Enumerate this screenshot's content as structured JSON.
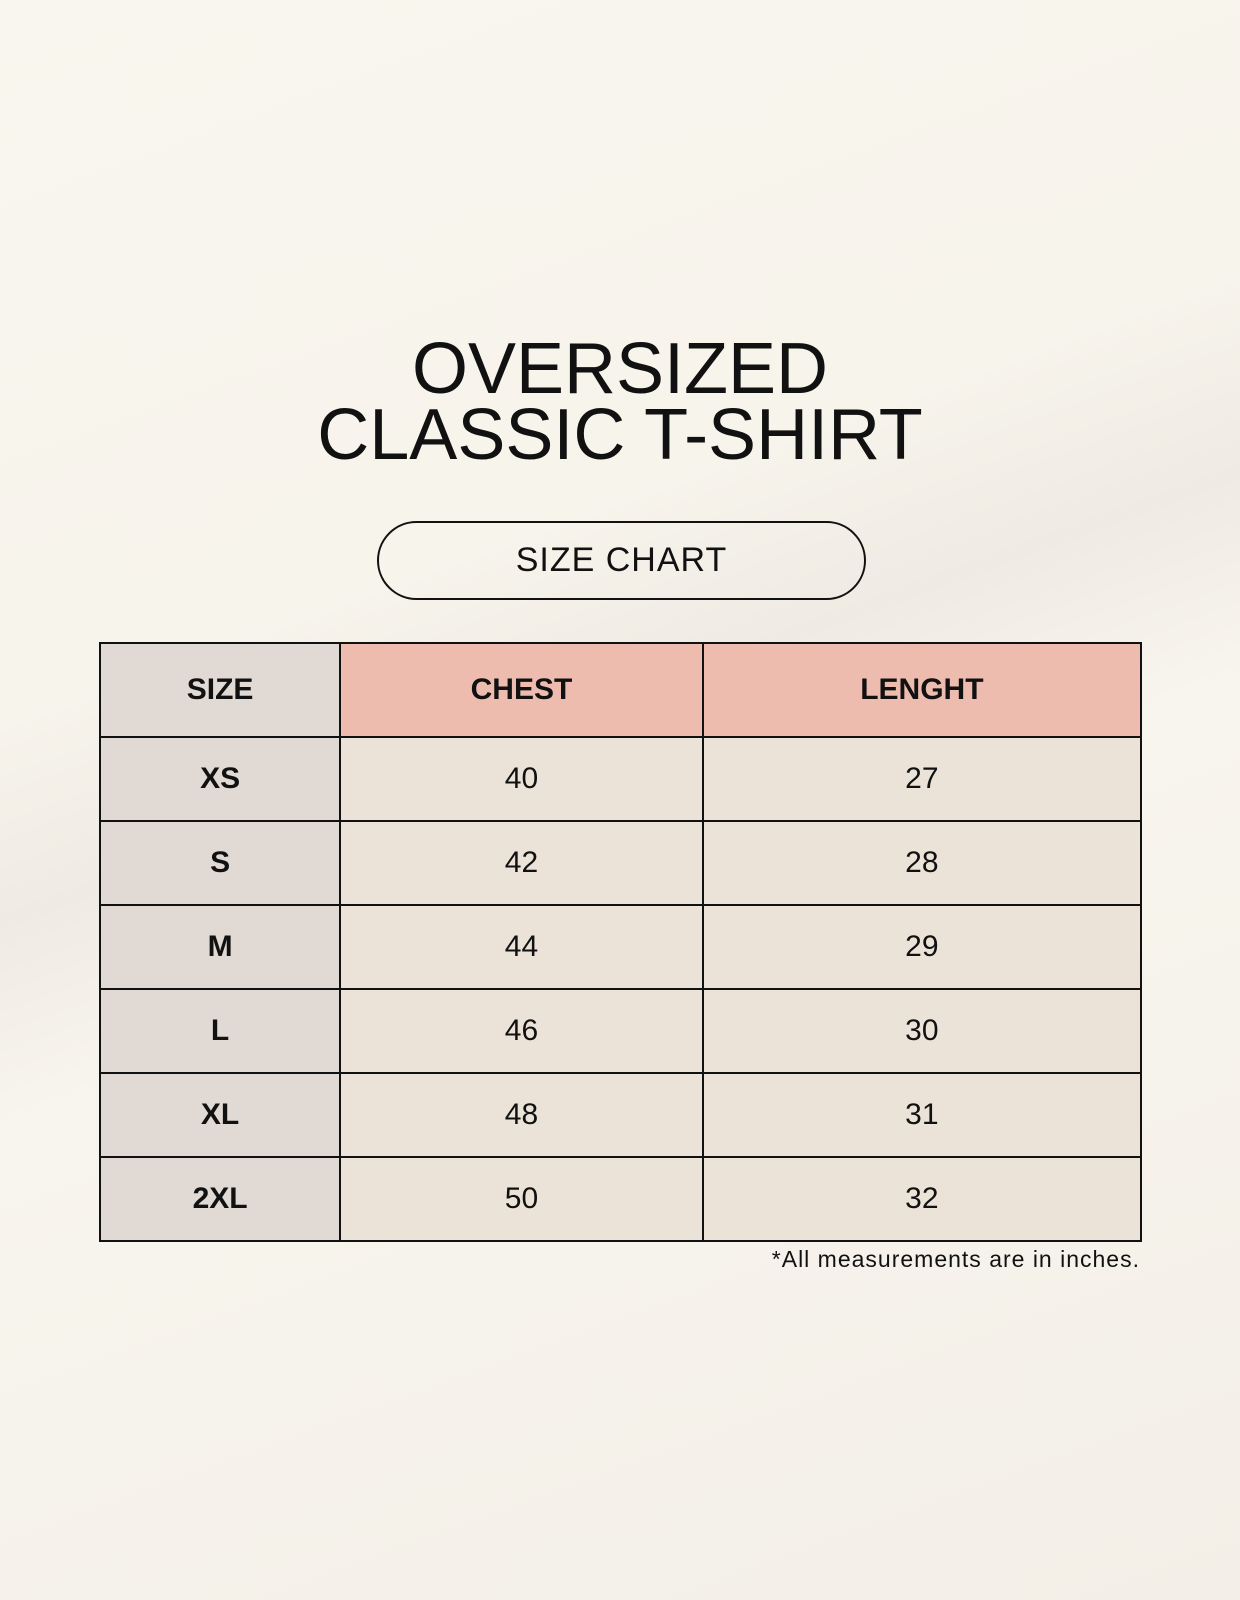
{
  "title": {
    "line1": "OVERSIZED",
    "line2": "CLASSIC T-SHIRT"
  },
  "subtitle": "SIZE CHART",
  "table": {
    "headers": [
      "SIZE",
      "CHEST",
      "LENGHT"
    ],
    "rows": [
      [
        "XS",
        "40",
        "27"
      ],
      [
        "S",
        "42",
        "28"
      ],
      [
        "M",
        "44",
        "29"
      ],
      [
        "L",
        "46",
        "30"
      ],
      [
        "XL",
        "48",
        "31"
      ],
      [
        "2XL",
        "50",
        "32"
      ]
    ]
  },
  "footnote": "*All measurements are in inches.",
  "colors": {
    "size_column": "#e1d9d3",
    "header_accent": "#eebcaf",
    "value_cells": "#ebe3d8"
  }
}
